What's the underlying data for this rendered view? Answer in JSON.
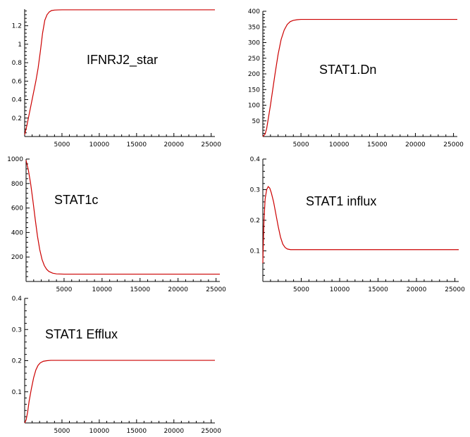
{
  "chart_data": [
    {
      "type": "line",
      "title": "IFNRJ2_star",
      "xlabel": "",
      "ylabel": "",
      "xlim": [
        0,
        25500
      ],
      "ylim": [
        0,
        1.38
      ],
      "x_ticks": [
        5000,
        10000,
        15000,
        20000,
        25000
      ],
      "x_tick_labels": [
        "5000",
        "10000",
        "15000",
        "20000",
        "25000"
      ],
      "y_ticks": [
        0.2,
        0.4,
        0.6,
        0.8,
        1,
        1.2
      ],
      "y_tick_labels": [
        "0.2",
        "0.4",
        "0.6",
        "0.8",
        "1",
        "1.2"
      ],
      "series": [
        {
          "name": "IFNRJ2_star",
          "color": "#cc0000",
          "x": [
            0,
            300,
            600,
            900,
            1200,
            1500,
            1800,
            2100,
            2400,
            2700,
            3000,
            3300,
            3600,
            4000,
            4500,
            5000,
            8000,
            15000,
            25500
          ],
          "y": [
            0.02,
            0.12,
            0.24,
            0.36,
            0.48,
            0.6,
            0.74,
            0.92,
            1.12,
            1.26,
            1.32,
            1.35,
            1.365,
            1.37,
            1.372,
            1.373,
            1.373,
            1.373,
            1.373
          ]
        }
      ]
    },
    {
      "type": "line",
      "title": "STAT1.Dn",
      "xlabel": "",
      "ylabel": "",
      "xlim": [
        0,
        25500
      ],
      "ylim": [
        0,
        400
      ],
      "x_ticks": [
        5000,
        10000,
        15000,
        20000,
        25000
      ],
      "x_tick_labels": [
        "5000",
        "10000",
        "15000",
        "20000",
        "25000"
      ],
      "y_ticks": [
        50,
        100,
        150,
        200,
        250,
        300,
        350,
        400
      ],
      "y_tick_labels": [
        "50",
        "100",
        "150",
        "200",
        "250",
        "300",
        "350",
        "400"
      ],
      "series": [
        {
          "name": "STAT1.Dn",
          "color": "#cc0000",
          "x": [
            0,
            300,
            500,
            700,
            1000,
            1300,
            1600,
            2000,
            2400,
            2800,
            3200,
            3600,
            4000,
            4500,
            5000,
            8000,
            15000,
            25500
          ],
          "y": [
            0,
            8,
            25,
            55,
            100,
            150,
            200,
            262,
            310,
            340,
            358,
            367,
            371,
            373,
            374,
            374,
            374,
            374
          ]
        }
      ]
    },
    {
      "type": "line",
      "title": "STAT1c",
      "xlabel": "",
      "ylabel": "",
      "xlim": [
        0,
        25500
      ],
      "ylim": [
        0,
        1000
      ],
      "x_ticks": [
        5000,
        10000,
        15000,
        20000,
        25000
      ],
      "x_tick_labels": [
        "5000",
        "10000",
        "15000",
        "20000",
        "25000"
      ],
      "y_ticks": [
        200,
        400,
        600,
        800,
        1000
      ],
      "y_tick_labels": [
        "200",
        "400",
        "600",
        "800",
        "1000"
      ],
      "series": [
        {
          "name": "STAT1c",
          "color": "#cc0000",
          "x": [
            0,
            300,
            600,
            900,
            1200,
            1500,
            1800,
            2100,
            2400,
            2700,
            3000,
            3500,
            4000,
            5000,
            8000,
            15000,
            25500
          ],
          "y": [
            990,
            910,
            800,
            660,
            510,
            370,
            260,
            180,
            130,
            100,
            82,
            68,
            62,
            60,
            60,
            60,
            60
          ]
        }
      ]
    },
    {
      "type": "line",
      "title": "STAT1 influx",
      "xlabel": "",
      "ylabel": "",
      "xlim": [
        0,
        25500
      ],
      "ylim": [
        0,
        0.4
      ],
      "x_ticks": [
        5000,
        10000,
        15000,
        20000,
        25000
      ],
      "x_tick_labels": [
        "5000",
        "10000",
        "15000",
        "20000",
        "25000"
      ],
      "y_ticks": [
        0.1,
        0.2,
        0.3,
        0.4
      ],
      "y_tick_labels": [
        "0.1",
        "0.2",
        "0.3",
        "0.4"
      ],
      "series": [
        {
          "name": "STAT1 influx",
          "color": "#cc0000",
          "x": [
            0,
            60,
            150,
            300,
            500,
            700,
            900,
            1100,
            1400,
            1700,
            2000,
            2300,
            2600,
            2900,
            3200,
            3600,
            4000,
            5000,
            8000,
            15000,
            25500
          ],
          "y": [
            0.06,
            0.12,
            0.2,
            0.27,
            0.3,
            0.31,
            0.305,
            0.29,
            0.26,
            0.22,
            0.18,
            0.145,
            0.122,
            0.111,
            0.106,
            0.104,
            0.104,
            0.104,
            0.104,
            0.104,
            0.104
          ]
        }
      ]
    },
    {
      "type": "line",
      "title": "STAT1 Efflux",
      "xlabel": "",
      "ylabel": "",
      "xlim": [
        0,
        25500
      ],
      "ylim": [
        0,
        0.4
      ],
      "x_ticks": [
        5000,
        10000,
        15000,
        20000,
        25000
      ],
      "x_tick_labels": [
        "5000",
        "10000",
        "15000",
        "20000",
        "25000"
      ],
      "y_ticks": [
        0.1,
        0.2,
        0.3,
        0.4
      ],
      "y_tick_labels": [
        "0.1",
        "0.2",
        "0.3",
        "0.4"
      ],
      "series": [
        {
          "name": "STAT1 Efflux",
          "color": "#cc0000",
          "x": [
            0,
            200,
            400,
            600,
            900,
            1200,
            1500,
            1800,
            2100,
            2500,
            3000,
            3500,
            4000,
            5000,
            8000,
            15000,
            25500
          ],
          "y": [
            0,
            0.01,
            0.035,
            0.07,
            0.11,
            0.145,
            0.17,
            0.185,
            0.193,
            0.198,
            0.2,
            0.201,
            0.201,
            0.201,
            0.201,
            0.201,
            0.201
          ]
        }
      ]
    }
  ]
}
